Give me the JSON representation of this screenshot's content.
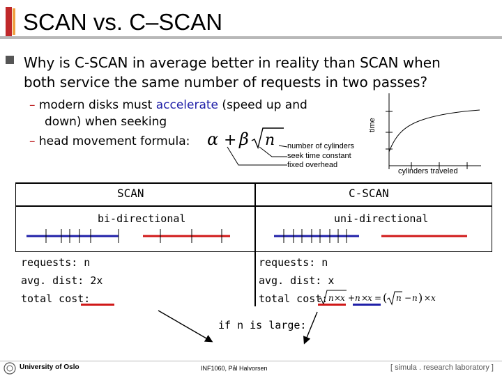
{
  "title": "SCAN vs. C–SCAN",
  "question": {
    "line1": "Why is C-SCAN in average better in reality than SCAN when",
    "line2": "both service the same number of requests in two passes?"
  },
  "points": [
    {
      "dash": "–",
      "text_before": "modern disks must ",
      "highlight": "accelerate",
      "text_after": " (speed up and",
      "line2": "down) when seeking"
    },
    {
      "dash": "–",
      "text": "head movement formula:"
    }
  ],
  "formula_labels": {
    "beta": "number of cylinders",
    "alpha_time": "seek time constant",
    "alpha_overhead": "fixed overhead"
  },
  "graph": {
    "y_label": "time",
    "x_label": "cylinders traveled"
  },
  "scan": {
    "header": "SCAN",
    "mode": "bi-directional",
    "requests": "requests: n",
    "avg": "avg. dist: 2x",
    "total": "total cost:"
  },
  "cscan": {
    "header": "C-SCAN",
    "mode": "uni-directional",
    "requests": "requests: n",
    "avg": "avg. dist: x",
    "total": "total cost:"
  },
  "large_n": "if n is large:",
  "footer": {
    "left": "University of Oslo",
    "center": "INF1060, Pål Halvorsen",
    "right": "[ simula . research laboratory ]"
  },
  "colors": {
    "accent": "#c0282a",
    "blue": "#1f1fa8",
    "red": "#d01818",
    "gray": "#b8b8b8"
  }
}
